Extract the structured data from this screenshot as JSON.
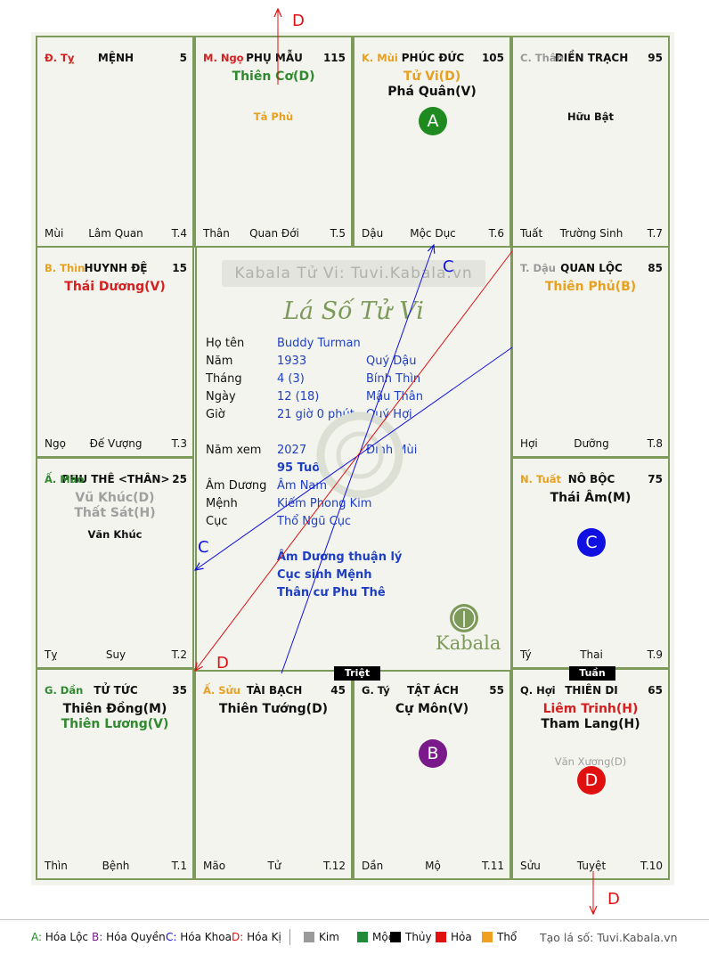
{
  "palaces": [
    {
      "id": "ty",
      "branch": "Đ. Tỵ",
      "branch_color": "#d42020",
      "palace": "MỆNH",
      "number": "5",
      "main_stars": [],
      "minor_stars": [],
      "footer_left": "Mùi",
      "footer_mid": "Lâm Quan",
      "footer_right": "T.4"
    },
    {
      "id": "ngo",
      "branch": "M. Ngọ",
      "branch_color": "#d42020",
      "palace": "PHỤ MẪU",
      "number": "115",
      "main_stars": [
        {
          "text": "Thiên Cơ(D)",
          "color": "#2f8a2f"
        }
      ],
      "minor_stars": [
        {
          "text": "Tả Phù",
          "color": "#e8a020"
        }
      ],
      "footer_left": "Thân",
      "footer_mid": "Quan Đới",
      "footer_right": "T.5"
    },
    {
      "id": "mui",
      "branch": "K. Mùi",
      "branch_color": "#e8a020",
      "palace": "PHÚC ĐỨC",
      "number": "105",
      "main_stars": [
        {
          "text": "Tử Vi(D)",
          "color": "#e8a020"
        },
        {
          "text": "Phá Quân(V)",
          "color": "#111111"
        }
      ],
      "minor_stars": [],
      "footer_left": "Dậu",
      "footer_mid": "Mộc Dục",
      "footer_right": "T.6",
      "badge": {
        "text": "A",
        "color": "#1f8a1f"
      }
    },
    {
      "id": "than",
      "branch": "C. Thân",
      "branch_color": "#999999",
      "palace": "ĐIỀN TRẠCH",
      "number": "95",
      "main_stars": [],
      "minor_stars": [
        {
          "text": "Hữu Bật",
          "color": "#111111"
        }
      ],
      "footer_left": "Tuất",
      "footer_mid": "Trường Sinh",
      "footer_right": "T.7"
    },
    {
      "id": "thin",
      "branch": "B. Thìn",
      "branch_color": "#e8a020",
      "palace": "HUYNH ĐỆ",
      "number": "15",
      "main_stars": [
        {
          "text": "Thái Dương(V)",
          "color": "#d42020"
        }
      ],
      "minor_stars": [],
      "footer_left": "Ngọ",
      "footer_mid": "Đế Vượng",
      "footer_right": "T.3"
    },
    {
      "id": "dau",
      "branch": "T. Dậu",
      "branch_color": "#999999",
      "palace": "QUAN LỘC",
      "number": "85",
      "main_stars": [
        {
          "text": "Thiên Phủ(B)",
          "color": "#e8a020"
        }
      ],
      "minor_stars": [],
      "footer_left": "Hợi",
      "footer_mid": "Dưỡng",
      "footer_right": "T.8"
    },
    {
      "id": "mao",
      "branch": "Ấ. Mão",
      "branch_color": "#2f8a2f",
      "palace": "PHU THÊ <THÂN>",
      "number": "25",
      "main_stars": [
        {
          "text": "Vũ Khúc(D)",
          "color": "#a0a0a0"
        },
        {
          "text": "Thất Sát(H)",
          "color": "#a0a0a0"
        }
      ],
      "minor_stars": [
        {
          "text": "Văn Khúc",
          "color": "#111111"
        }
      ],
      "footer_left": "Tỵ",
      "footer_mid": "Suy",
      "footer_right": "T.2"
    },
    {
      "id": "tuat",
      "branch": "N. Tuất",
      "branch_color": "#e8a020",
      "palace": "NÔ BỘC",
      "number": "75",
      "main_stars": [
        {
          "text": "Thái Âm(M)",
          "color": "#111111"
        }
      ],
      "minor_stars": [],
      "footer_left": "Tý",
      "footer_mid": "Thai",
      "footer_right": "T.9",
      "badge": {
        "text": "C",
        "color": "#1010e0"
      }
    },
    {
      "id": "dan",
      "branch": "G. Dần",
      "branch_color": "#2f8a2f",
      "palace": "TỬ TỨC",
      "number": "35",
      "main_stars": [
        {
          "text": "Thiên Đồng(M)",
          "color": "#111111"
        },
        {
          "text": "Thiên Lương(V)",
          "color": "#2f8a2f"
        }
      ],
      "minor_stars": [],
      "footer_left": "Thìn",
      "footer_mid": "Bệnh",
      "footer_right": "T.1"
    },
    {
      "id": "suu",
      "branch": "Ấ. Sửu",
      "branch_color": "#e8a020",
      "palace": "TÀI BẠCH",
      "number": "45",
      "main_stars": [
        {
          "text": "Thiên Tướng(D)",
          "color": "#111111"
        }
      ],
      "minor_stars": [],
      "footer_left": "Mão",
      "footer_mid": "Tử",
      "footer_right": "T.12"
    },
    {
      "id": "ti",
      "branch": "G. Tý",
      "branch_color": "#111111",
      "palace": "TẬT ÁCH",
      "number": "55",
      "main_stars": [
        {
          "text": "Cự Môn(V)",
          "color": "#111111"
        }
      ],
      "minor_stars": [],
      "footer_left": "Dần",
      "footer_mid": "Mộ",
      "footer_right": "T.11",
      "badge": {
        "text": "B",
        "color": "#7a1a8a"
      }
    },
    {
      "id": "hoi",
      "branch": "Q. Hợi",
      "branch_color": "#111111",
      "palace": "THIÊN DI",
      "number": "65",
      "main_stars": [
        {
          "text": "Liêm Trinh(H)",
          "color": "#d42020"
        },
        {
          "text": "Tham Lang(H)",
          "color": "#111111"
        }
      ],
      "minor_stars": [
        {
          "text": "Văn Xương(D)",
          "color": "#a0a0a0"
        }
      ],
      "footer_left": "Sửu",
      "footer_mid": "Tuyệt",
      "footer_right": "T.10",
      "badge": {
        "text": "D",
        "color": "#e01010"
      }
    }
  ],
  "center": {
    "watermark": "Kabala Tử Vi: Tuvi.Kabala.vn",
    "title": "Lá Số Tử Vi",
    "rows": [
      {
        "label": "Họ tên",
        "value": "Buddy Turman",
        "extra": ""
      },
      {
        "label": "Năm",
        "value": "1933",
        "extra": "Quý Dậu"
      },
      {
        "label": "Tháng",
        "value": "4  (3)",
        "extra": "Bính Thìn"
      },
      {
        "label": "Ngày",
        "value": "12  (18)",
        "extra": "Mậu Thân"
      },
      {
        "label": "Giờ",
        "value": "21 giờ 0 phút",
        "extra": "Quý Hợi"
      },
      {
        "label": "Năm xem",
        "value": "2027",
        "extra": "Đinh Mùi"
      },
      {
        "label": "",
        "value": "95 Tuổi",
        "extra": ""
      },
      {
        "label": "Âm Dương",
        "value": "Âm Nam",
        "extra": ""
      },
      {
        "label": "Mệnh",
        "value": "Kiếm Phong Kim",
        "extra": ""
      },
      {
        "label": "Cục",
        "value": "Thổ Ngũ Cục",
        "extra": ""
      }
    ],
    "notes": [
      "Âm Dương thuận lý",
      "Cục sinh Mệnh",
      "Thân cư Phu Thê"
    ],
    "logo_text": "Kabala"
  },
  "tags": {
    "triet": "Triệt",
    "tuan": "Tuần"
  },
  "arrows": {
    "d_top": "D",
    "c_mocduc": "C",
    "c_left": "C",
    "d_lower": "D",
    "d_bottom": "D"
  },
  "legend": {
    "items": [
      {
        "key": "A:",
        "text": " Hóa Lộc",
        "color": "#1f8a1f"
      },
      {
        "key": "B:",
        "text": " Hóa Quyền",
        "color": "#7a1a8a"
      },
      {
        "key": "C:",
        "text": " Hóa Khoa",
        "color": "#1010e0"
      },
      {
        "key": "D:",
        "text": " Hóa Kị",
        "color": "#e01010"
      }
    ],
    "elements": [
      {
        "name": "Kim",
        "color": "#9a9a9a"
      },
      {
        "name": "Mộc",
        "color": "#1f8a3a"
      },
      {
        "name": "Thủy",
        "color": "#000000"
      },
      {
        "name": "Hỏa",
        "color": "#e01010"
      },
      {
        "name": "Thổ",
        "color": "#f0a020"
      }
    ],
    "site": "Tạo lá số: Tuvi.Kabala.vn"
  }
}
